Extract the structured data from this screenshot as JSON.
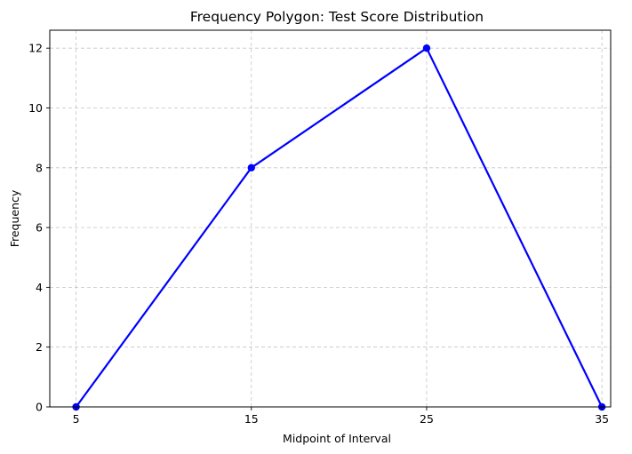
{
  "chart_data": {
    "type": "line",
    "title": "Frequency Polygon: Test Score Distribution",
    "xlabel": "Midpoint of Interval",
    "ylabel": "Frequency",
    "x": [
      5,
      15,
      25,
      35
    ],
    "series": [
      {
        "values": [
          0,
          8,
          12,
          0
        ],
        "color": "#0000ff",
        "marker": "circle"
      }
    ],
    "xticks": [
      5,
      15,
      25,
      35
    ],
    "yticks": [
      0,
      2,
      4,
      6,
      8,
      10,
      12
    ],
    "xlim": [
      3.5,
      35.5
    ],
    "ylim": [
      0,
      12.6
    ],
    "grid": true,
    "grid_color": "#b0b0b0"
  }
}
